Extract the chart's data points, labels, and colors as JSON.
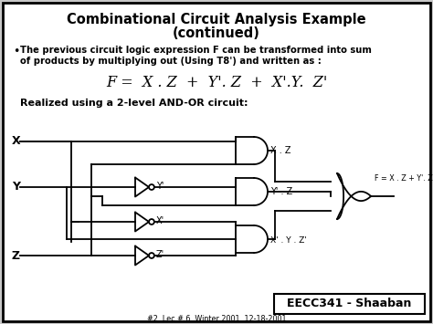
{
  "title_line1": "Combinational Circuit Analysis Example",
  "title_line2": "(continued)",
  "bullet_text": "The previous circuit logic expression F can be transformed into sum\nof products by multiplying out (Using T8') and written as :",
  "formula": "F =  X . Z  +  Y'. Z  +  X'.Y.  Z'",
  "realized_text": "Realized using a 2-level AND-OR circuit:",
  "footer_main": "EECC341 - Shaaban",
  "footer_sub": "#2  Lec # 6  Winter 2001  12-18-2001",
  "bg_color": "#c8c8c8",
  "box_color": "#ffffff",
  "text_color": "#000000",
  "lw": 1.3
}
